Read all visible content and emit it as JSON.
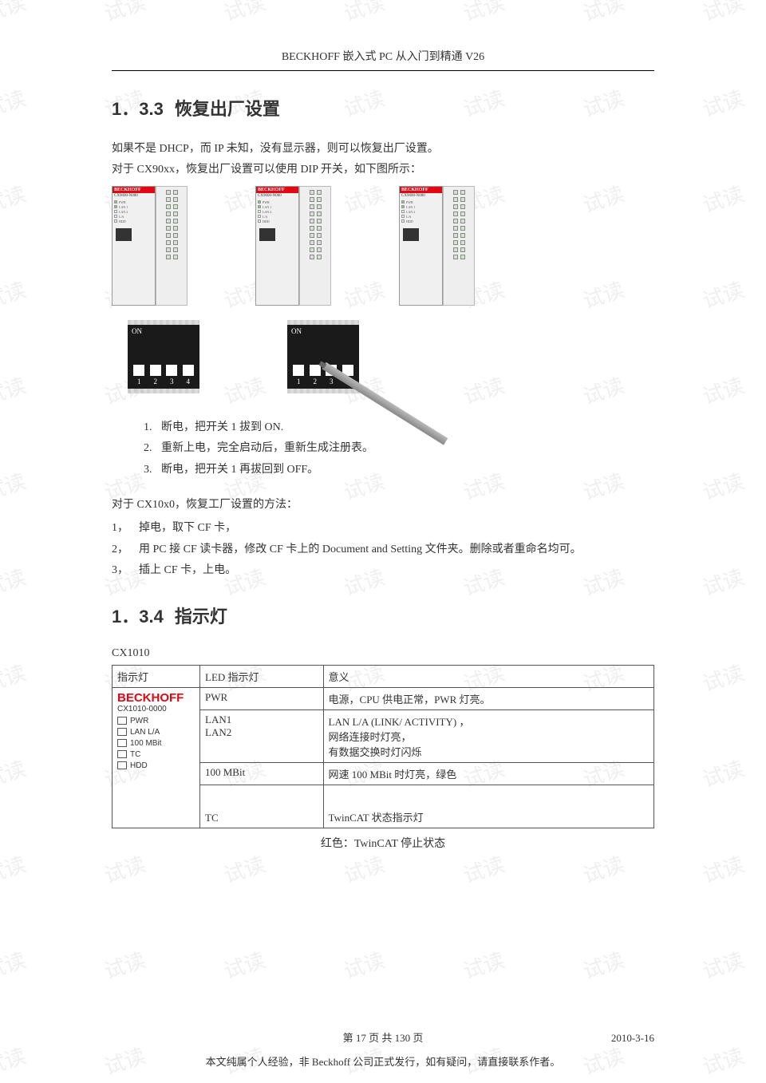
{
  "header": "BECKHOFF 嵌入式 PC 从入门到精通 V26",
  "watermark_text": "试读",
  "watermark_color": "#d8d8d8",
  "section_33": {
    "num": "1．3.3",
    "title": "恢复出厂设置",
    "intro1": "如果不是 DHCP，而 IP 未知，没有显示器，则可以恢复出厂设置。",
    "intro2": "对于 CX90xx，恢复出厂设置可以使用 DIP 开关，如下图所示：",
    "device_brand": "BECKHOFF",
    "device_model": "CX9000-N000",
    "device_leds": [
      "PWR",
      "LAN 1",
      "LAN 2",
      "L/A",
      "HDD"
    ],
    "dip_on_label": "ON",
    "dip_numbers": [
      "1",
      "2",
      "3",
      "4"
    ],
    "dip_body_color": "#1a1a1a",
    "dip_nub_color": "#ffffff",
    "steps_90": [
      {
        "n": "1.",
        "t": "断电，把开关 1 拔到 ON."
      },
      {
        "n": "2.",
        "t": "重新上电，完全启动后，重新生成注册表。"
      },
      {
        "n": "3.",
        "t": "断电，把开关 1 再拔回到 OFF。"
      }
    ],
    "cx10_intro": "对于 CX10x0，恢复工厂设置的方法：",
    "cx10_steps": [
      {
        "m": "1，",
        "t": "掉电，取下 CF 卡，"
      },
      {
        "m": "2，",
        "t": "用 PC 接 CF 读卡器，修改 CF 卡上的 Document and Setting 文件夹。删除或者重命名均可。"
      },
      {
        "m": "3，",
        "t": "插上 CF 卡，上电。"
      }
    ]
  },
  "section_34": {
    "num": "1．3.4",
    "title": "指示灯",
    "model": "CX1010",
    "table": {
      "headers": [
        "指示灯",
        "LED 指示灯",
        "意义"
      ],
      "panel": {
        "brand": "BECKHOFF",
        "code": "CX1010-0000",
        "leds": [
          "PWR",
          "LAN L/A",
          "100 MBit",
          "TC",
          "HDD"
        ]
      },
      "rows": [
        {
          "led": "PWR",
          "meaning": "电源，CPU 供电正常，PWR 灯亮。"
        },
        {
          "led": "LAN1\nLAN2",
          "meaning": "LAN L/A (LINK/ ACTIVITY) ，\n网络连接时灯亮，\n有数据交换时灯闪烁"
        },
        {
          "led": "100 MBit",
          "meaning": "网速 100 MBit 时灯亮，绿色"
        },
        {
          "led": "TC",
          "meaning": "TwinCAT 状态指示灯"
        }
      ],
      "border_color": "#555555"
    },
    "below_note": "红色：TwinCAT 停止状态"
  },
  "footer_page": "第 17 页 共 130 页",
  "footer_date": "2010-3-16",
  "disclaimer": "本文纯属个人经验，非 Beckhoff 公司正式发行，如有疑问，请直接联系作者。",
  "colors": {
    "accent_red": "#e30613",
    "text": "#333333",
    "watermark": "#d8d8d8"
  }
}
